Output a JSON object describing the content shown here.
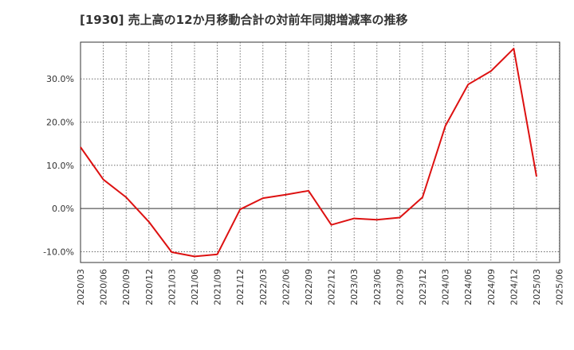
{
  "chart_data": {
    "type": "line",
    "title": "[1930]  売上高の12か月移動合計の対前年同期増減率の推移",
    "xlabel": "",
    "ylabel": "",
    "x": [
      "2020/03",
      "2020/06",
      "2020/09",
      "2020/12",
      "2021/03",
      "2021/06",
      "2021/09",
      "2021/12",
      "2022/03",
      "2022/06",
      "2022/09",
      "2022/12",
      "2023/03",
      "2023/06",
      "2023/09",
      "2023/12",
      "2024/03",
      "2024/06",
      "2024/09",
      "2024/12",
      "2025/03",
      "2025/06"
    ],
    "series": [
      {
        "name": "対前年同期増減率",
        "color": "#dd1111",
        "values": [
          14.2,
          6.7,
          2.6,
          -3.1,
          -10.1,
          -11.1,
          -10.6,
          -0.2,
          2.4,
          3.2,
          4.1,
          -3.8,
          -2.3,
          -2.6,
          -2.1,
          2.6,
          19.1,
          28.7,
          31.8,
          37.0,
          7.4,
          null
        ]
      }
    ],
    "yticks": [
      -10,
      0,
      10,
      20,
      30
    ],
    "ytick_labels": [
      "-10.0%",
      "0.0%",
      "10.0%",
      "20.0%",
      "30.0%"
    ],
    "ylim": [
      -12.5,
      38.5
    ],
    "grid": true
  }
}
